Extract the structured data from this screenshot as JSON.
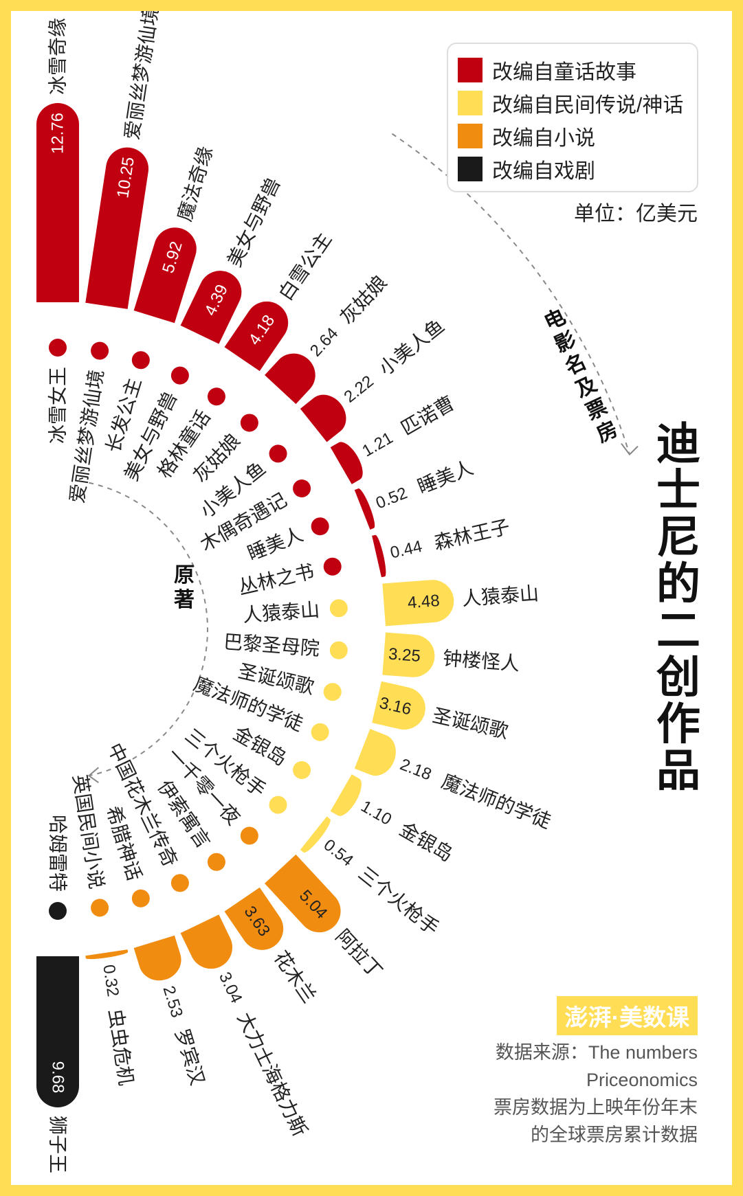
{
  "chart_data": {
    "type": "radial-bar",
    "unit": "单位：亿美元",
    "categories": [
      {
        "name": "改编自童话故事",
        "color": "#c00010"
      },
      {
        "name": "改编自民间传说/神话",
        "color": "#ffdd55"
      },
      {
        "name": "改编自小说",
        "color": "#f08c10"
      },
      {
        "name": "改编自戏剧",
        "color": "#1a1a1a"
      }
    ],
    "films": [
      {
        "film": "冰雪奇缘",
        "value": 12.76,
        "source": "冰雪女王",
        "category": 0
      },
      {
        "film": "爱丽丝梦游仙境",
        "value": 10.25,
        "source": "爱丽丝梦游仙境",
        "category": 0
      },
      {
        "film": "魔法奇缘",
        "value": 5.92,
        "source": "长发公主",
        "category": 0
      },
      {
        "film": "美女与野兽",
        "value": 4.39,
        "source": "美女与野兽",
        "category": 0
      },
      {
        "film": "白雪公主",
        "value": 4.18,
        "source": "格林童话",
        "category": 0
      },
      {
        "film": "灰姑娘",
        "value": 2.64,
        "source": "灰姑娘",
        "category": 0
      },
      {
        "film": "小美人鱼",
        "value": 2.22,
        "source": "小美人鱼",
        "category": 0
      },
      {
        "film": "匹诺曹",
        "value": 1.21,
        "source": "木偶奇遇记",
        "category": 0
      },
      {
        "film": "睡美人",
        "value": 0.52,
        "source": "睡美人",
        "category": 0
      },
      {
        "film": "森林王子",
        "value": 0.44,
        "source": "丛林之书",
        "category": 0
      },
      {
        "film": "人猿泰山",
        "value": 4.48,
        "source": "人猿泰山",
        "category": 1
      },
      {
        "film": "钟楼怪人",
        "value": 3.25,
        "source": "巴黎圣母院",
        "category": 1
      },
      {
        "film": "圣诞颂歌",
        "value": 3.16,
        "source": "圣诞颂歌",
        "category": 1
      },
      {
        "film": "魔法师的学徒",
        "value": 2.18,
        "source": "魔法师的学徒",
        "category": 1
      },
      {
        "film": "金银岛",
        "value": 1.1,
        "source": "金银岛",
        "category": 1
      },
      {
        "film": "三个火枪手",
        "value": 0.54,
        "source": "三个火枪手",
        "category": 1
      },
      {
        "film": "阿拉丁",
        "value": 5.04,
        "source": "一千零一夜",
        "category": 2
      },
      {
        "film": "花木兰",
        "value": 3.63,
        "source": "伊索寓言",
        "category": 2
      },
      {
        "film": "大力士海格力斯",
        "value": 3.04,
        "source": "中国花木兰传奇",
        "category": 2
      },
      {
        "film": "罗宾汉",
        "value": 2.53,
        "source": "希腊神话",
        "category": 2
      },
      {
        "film": "虫虫危机",
        "value": 0.32,
        "source": "英国民间小说",
        "category": 2
      },
      {
        "film": "狮子王",
        "value": 9.68,
        "source": "哈姆雷特",
        "category": 3
      }
    ]
  },
  "title": "迪士尼的二创作品",
  "movie_axis_label": "电影名及票房",
  "source_axis_label": "原著",
  "logo": "澎湃·美数课",
  "source_lines": [
    "数据来源：The numbers",
    "Priceonomics",
    "票房数据为上映年份年末",
    "的全球票房累计数据"
  ]
}
